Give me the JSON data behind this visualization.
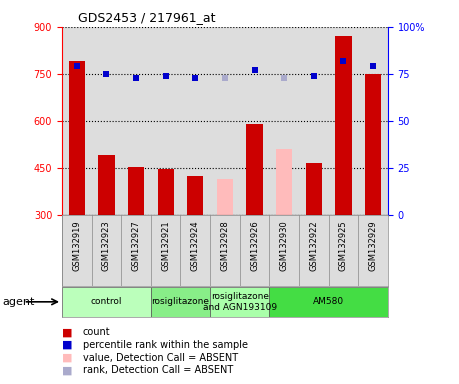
{
  "title": "GDS2453 / 217961_at",
  "samples": [
    "GSM132919",
    "GSM132923",
    "GSM132927",
    "GSM132921",
    "GSM132924",
    "GSM132928",
    "GSM132926",
    "GSM132930",
    "GSM132922",
    "GSM132925",
    "GSM132929"
  ],
  "counts": [
    790,
    490,
    453,
    447,
    425,
    null,
    590,
    null,
    467,
    870,
    750
  ],
  "counts_absent": [
    null,
    null,
    null,
    null,
    null,
    415,
    null,
    510,
    null,
    null,
    null
  ],
  "percentile_ranks": [
    79,
    75,
    73,
    74,
    73,
    null,
    77,
    null,
    74,
    82,
    79
  ],
  "percentile_ranks_absent": [
    null,
    null,
    null,
    null,
    null,
    73,
    null,
    73,
    null,
    null,
    null
  ],
  "ylim_left": [
    300,
    900
  ],
  "ylim_right": [
    0,
    100
  ],
  "yticks_left": [
    300,
    450,
    600,
    750,
    900
  ],
  "yticks_right": [
    0,
    25,
    50,
    75,
    100
  ],
  "ytick_labels_right": [
    "0",
    "25",
    "50",
    "75",
    "100%"
  ],
  "groups": [
    {
      "label": "control",
      "start": 0,
      "end": 3,
      "color": "#bbffbb"
    },
    {
      "label": "rosiglitazone",
      "start": 3,
      "end": 5,
      "color": "#88ee88"
    },
    {
      "label": "rosiglitazone\nand AGN193109",
      "start": 5,
      "end": 7,
      "color": "#aaffaa"
    },
    {
      "label": "AM580",
      "start": 7,
      "end": 11,
      "color": "#44dd44"
    }
  ],
  "bar_color_present": "#cc0000",
  "bar_color_absent_value": "#ffbbbb",
  "marker_color_present": "#0000cc",
  "marker_color_absent": "#aaaacc",
  "marker_size": 5,
  "background_color": "#dddddd",
  "legend": [
    {
      "color": "#cc0000",
      "label": "count"
    },
    {
      "color": "#0000cc",
      "label": "percentile rank within the sample"
    },
    {
      "color": "#ffbbbb",
      "label": "value, Detection Call = ABSENT"
    },
    {
      "color": "#aaaacc",
      "label": "rank, Detection Call = ABSENT"
    }
  ]
}
